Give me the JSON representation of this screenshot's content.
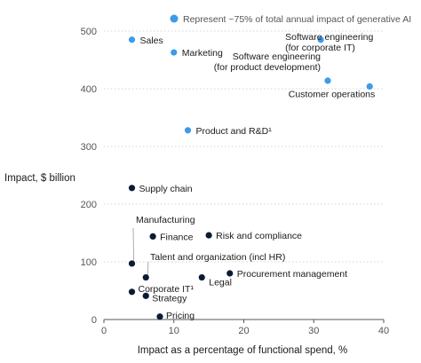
{
  "chart_data": {
    "type": "scatter",
    "xlabel": "Impact as a percentage of functional spend, %",
    "ylabel": "Impact, $ billion",
    "xlim": [
      0,
      40
    ],
    "ylim": [
      0,
      500
    ],
    "x_ticks": [
      "0",
      "10",
      "20",
      "30",
      "40"
    ],
    "y_ticks": [
      "0",
      "100",
      "200",
      "300",
      "400",
      "500"
    ],
    "grid": "horizontal",
    "legend": {
      "position": "top-right",
      "entries": [
        {
          "label": "Represent ~75% of total annual impact of generative AI",
          "color": "#3d9be9"
        }
      ]
    },
    "colors": {
      "highlight": "#3d9be9",
      "other": "#0b1b34",
      "grid": "#c8c8c8",
      "leader": "#9a9a9a"
    },
    "points": [
      {
        "label": "Sales",
        "x": 4,
        "y": 485,
        "highlight": true
      },
      {
        "label": "Marketing",
        "x": 10,
        "y": 463,
        "highlight": true
      },
      {
        "label": "Software engineering\n(for corporate IT)",
        "x": 31,
        "y": 485,
        "highlight": true
      },
      {
        "label": "Software engineering\n(for product development)",
        "x": 32,
        "y": 414,
        "highlight": true
      },
      {
        "label": "Customer operations",
        "x": 38,
        "y": 404,
        "highlight": true
      },
      {
        "label": "Product and R&D¹",
        "x": 12,
        "y": 328,
        "highlight": true
      },
      {
        "label": "Supply chain",
        "x": 4,
        "y": 228,
        "highlight": false
      },
      {
        "label": "Manufacturing",
        "x": 4,
        "y": 97,
        "highlight": false
      },
      {
        "label": "Finance",
        "x": 7,
        "y": 144,
        "highlight": false
      },
      {
        "label": "Risk and compliance",
        "x": 15,
        "y": 146,
        "highlight": false
      },
      {
        "label": "Talent and organization (incl HR)",
        "x": 6,
        "y": 73,
        "highlight": false
      },
      {
        "label": "Procurement management",
        "x": 18,
        "y": 80,
        "highlight": false
      },
      {
        "label": "Legal",
        "x": 14,
        "y": 73,
        "highlight": false
      },
      {
        "label": "Corporate IT¹",
        "x": 4,
        "y": 48,
        "highlight": false
      },
      {
        "label": "Strategy",
        "x": 6,
        "y": 41,
        "highlight": false
      },
      {
        "label": "Pricing",
        "x": 8,
        "y": 5,
        "highlight": false
      }
    ]
  }
}
